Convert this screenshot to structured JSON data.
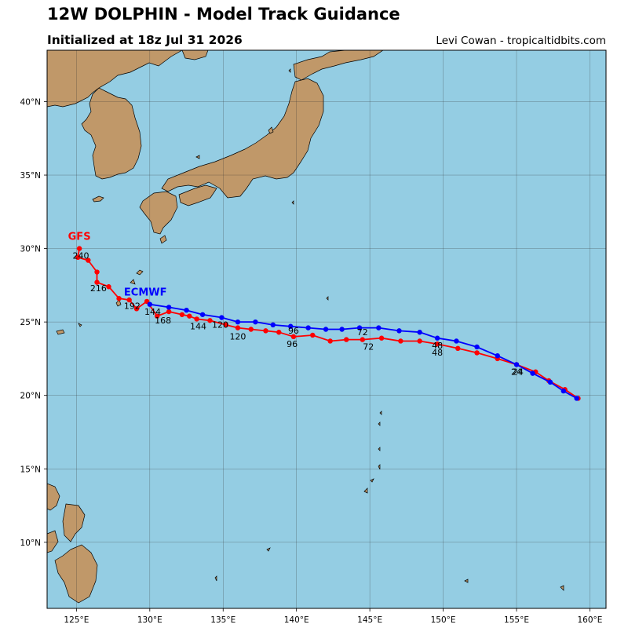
{
  "header": {
    "title": "12W DOLPHIN - Model Track Guidance",
    "subtitle": "Initialized at 18z Jul 31 2026",
    "credit": "Levi Cowan - tropicaltidbits.com"
  },
  "colors": {
    "ocean": "#94cde3",
    "land": "#c09869",
    "gfs": "#ff0000",
    "ecmwf": "#0000ff",
    "grid": "#333333"
  },
  "map": {
    "lon_range": [
      123.0,
      161.1
    ],
    "lat_range": [
      5.5,
      43.5
    ],
    "lon_ticks": [
      {
        "value": 125,
        "label": "125°E"
      },
      {
        "value": 130,
        "label": "130°E"
      },
      {
        "value": 135,
        "label": "135°E"
      },
      {
        "value": 140,
        "label": "140°E"
      },
      {
        "value": 145,
        "label": "145°E"
      },
      {
        "value": 150,
        "label": "150°E"
      },
      {
        "value": 155,
        "label": "155°E"
      },
      {
        "value": 160,
        "label": "160°E"
      }
    ],
    "lat_ticks": [
      {
        "value": 10,
        "label": "10°N"
      },
      {
        "value": 15,
        "label": "15°N"
      },
      {
        "value": 20,
        "label": "20°N"
      },
      {
        "value": 25,
        "label": "25°N"
      },
      {
        "value": 30,
        "label": "30°N"
      },
      {
        "value": 35,
        "label": "35°N"
      },
      {
        "value": 40,
        "label": "40°N"
      }
    ]
  },
  "models": [
    {
      "name": "GFS",
      "color": "#ff0000",
      "name_pos": {
        "lon": 125.2,
        "lat": 30.6
      },
      "track": [
        [
          159.2,
          19.8
        ],
        [
          158.3,
          20.4
        ],
        [
          157.2,
          21.0
        ],
        [
          156.3,
          21.6
        ],
        [
          155.0,
          22.1
        ],
        [
          153.7,
          22.5
        ],
        [
          152.3,
          22.9
        ],
        [
          151.0,
          23.2
        ],
        [
          149.6,
          23.5
        ],
        [
          148.4,
          23.7
        ],
        [
          147.1,
          23.7
        ],
        [
          145.8,
          23.9
        ],
        [
          144.5,
          23.8
        ],
        [
          143.4,
          23.8
        ],
        [
          142.3,
          23.7
        ],
        [
          141.1,
          24.1
        ],
        [
          139.8,
          24.0
        ],
        [
          138.8,
          24.3
        ],
        [
          137.9,
          24.4
        ],
        [
          136.9,
          24.5
        ],
        [
          136.0,
          24.6
        ],
        [
          135.2,
          24.8
        ],
        [
          134.1,
          25.1
        ],
        [
          133.2,
          25.2
        ],
        [
          132.7,
          25.4
        ],
        [
          132.2,
          25.5
        ],
        [
          131.3,
          25.7
        ],
        [
          130.5,
          25.4
        ],
        [
          129.8,
          26.4
        ],
        [
          129.1,
          25.9
        ],
        [
          128.6,
          26.5
        ],
        [
          127.9,
          26.6
        ],
        [
          127.2,
          27.4
        ],
        [
          126.4,
          27.7
        ],
        [
          126.4,
          28.4
        ],
        [
          125.8,
          29.2
        ],
        [
          125.1,
          29.4
        ],
        [
          125.2,
          30.0
        ]
      ],
      "hour_labels": [
        {
          "text": "24",
          "lon": 155.0,
          "lat": 21.4
        },
        {
          "text": "48",
          "lon": 149.6,
          "lat": 22.7
        },
        {
          "text": "72",
          "lon": 144.9,
          "lat": 23.1
        },
        {
          "text": "96",
          "lon": 139.7,
          "lat": 23.3
        },
        {
          "text": "120",
          "lon": 136.0,
          "lat": 23.8
        },
        {
          "text": "144",
          "lon": 133.3,
          "lat": 24.5
        },
        {
          "text": "168",
          "lon": 130.9,
          "lat": 24.9
        },
        {
          "text": "192",
          "lon": 128.8,
          "lat": 25.9
        },
        {
          "text": "216",
          "lon": 126.5,
          "lat": 27.1
        },
        {
          "text": "240",
          "lon": 125.3,
          "lat": 29.3
        }
      ]
    },
    {
      "name": "ECMWF",
      "color": "#0000ff",
      "name_pos": {
        "lon": 129.7,
        "lat": 26.8
      },
      "track": [
        [
          159.1,
          19.8
        ],
        [
          158.2,
          20.3
        ],
        [
          157.3,
          20.9
        ],
        [
          156.1,
          21.5
        ],
        [
          155.0,
          22.1
        ],
        [
          153.7,
          22.7
        ],
        [
          152.3,
          23.3
        ],
        [
          150.9,
          23.7
        ],
        [
          149.6,
          23.9
        ],
        [
          148.4,
          24.3
        ],
        [
          147.0,
          24.4
        ],
        [
          145.6,
          24.6
        ],
        [
          144.3,
          24.6
        ],
        [
          143.1,
          24.5
        ],
        [
          142.0,
          24.5
        ],
        [
          140.8,
          24.6
        ],
        [
          139.6,
          24.7
        ],
        [
          138.4,
          24.8
        ],
        [
          137.2,
          25.0
        ],
        [
          136.0,
          25.0
        ],
        [
          134.9,
          25.3
        ],
        [
          133.6,
          25.5
        ],
        [
          132.5,
          25.8
        ],
        [
          131.3,
          26.0
        ],
        [
          130.0,
          26.2
        ]
      ],
      "hour_labels": [
        {
          "text": "24",
          "lon": 155.1,
          "lat": 21.4
        },
        {
          "text": "48",
          "lon": 149.6,
          "lat": 23.2
        },
        {
          "text": "72",
          "lon": 144.5,
          "lat": 24.1
        },
        {
          "text": "96",
          "lon": 139.8,
          "lat": 24.2
        },
        {
          "text": "120",
          "lon": 134.8,
          "lat": 24.6
        },
        {
          "text": "144",
          "lon": 130.2,
          "lat": 25.5
        }
      ]
    }
  ]
}
